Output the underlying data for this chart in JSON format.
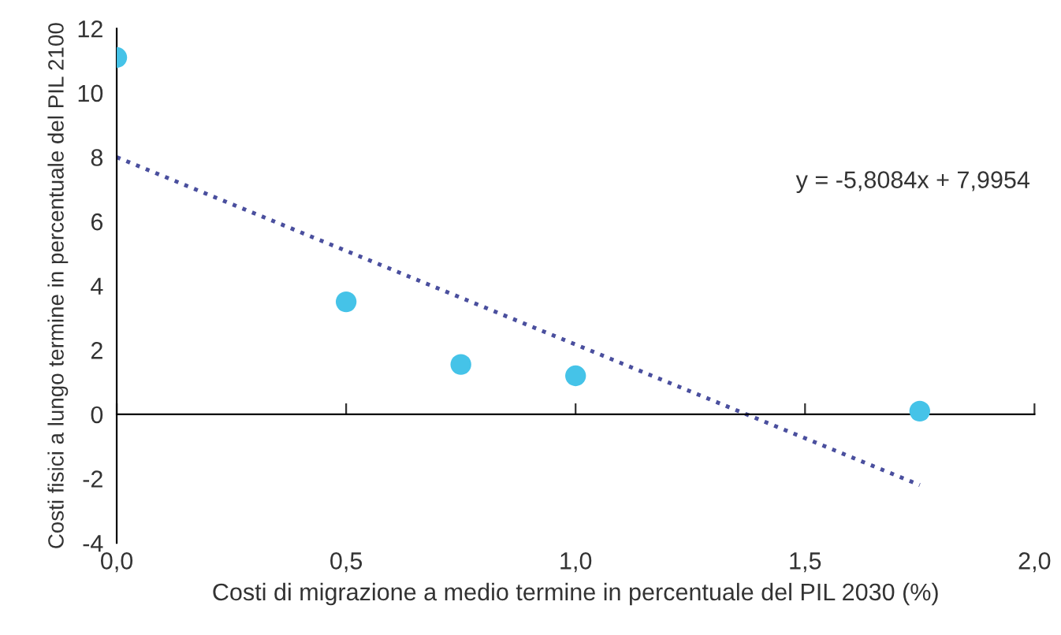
{
  "chart_data": {
    "type": "scatter",
    "xlabel": "Costi di migrazione a medio termine in percentuale del PIL 2030 (%)",
    "ylabel": "Costi fisici a lungo termine in percentuale del PIL 2100",
    "series": [
      {
        "color": "#45c3e8",
        "x": [
          0,
          0.5,
          0.75,
          1.0,
          1.75
        ],
        "values": [
          11.1,
          3.5,
          1.55,
          1.2,
          0.1
        ],
        "marker": "circle"
      },
      {
        "type": "line",
        "color": "#4a4f9e",
        "x": [
          0,
          1.75
        ],
        "values": [
          8.0,
          -2.2
        ],
        "line_style": "dotted",
        "marker": "none"
      }
    ],
    "annotations": [
      "y = -5,8084x + 7,9954"
    ],
    "xlim": [
      0,
      2
    ],
    "ylim": [
      -4,
      12
    ],
    "xticks": [
      {
        "value": 0,
        "label": "0,0"
      },
      {
        "value": 0.5,
        "label": "0,5"
      },
      {
        "value": 1,
        "label": "1,0"
      },
      {
        "value": 1.5,
        "label": "1,5"
      },
      {
        "value": 2,
        "label": "2,0"
      }
    ],
    "yticks": [
      -4,
      -2,
      0,
      2,
      4,
      6,
      8,
      10,
      12
    ],
    "legend": false
  }
}
